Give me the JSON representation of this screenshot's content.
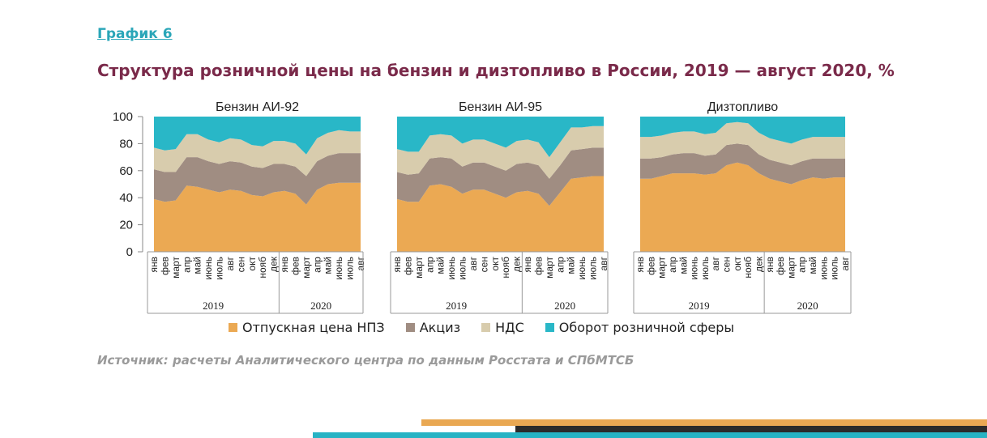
{
  "header": {
    "label": "График 6",
    "title": "Структура розничной цены на бензин и дизтопливо в России, 2019 — август 2020, %"
  },
  "source": "Источник: расчеты Аналитического центра по данным Росстата и СПбМТСБ",
  "colors": {
    "refinery": "#eba953",
    "excise": "#a08d82",
    "vat": "#d8ccad",
    "retail": "#29b7c7"
  },
  "chart_data": [
    {
      "type": "area",
      "stacked": true,
      "title": "Бензин АИ-92",
      "categories": [
        "янв",
        "фев",
        "март",
        "апр",
        "май",
        "июнь",
        "июль",
        "авг",
        "сен",
        "окт",
        "нояб",
        "дек",
        "янв",
        "фев",
        "март",
        "апр",
        "май",
        "июнь",
        "июль",
        "авг"
      ],
      "year_groups": [
        "2019",
        "2020"
      ],
      "ylim": [
        0,
        100
      ],
      "yticks": [
        0,
        20,
        40,
        60,
        80,
        100
      ],
      "series": [
        {
          "name": "Отпускная цена НПЗ",
          "values": [
            39,
            37,
            38,
            49,
            48,
            46,
            44,
            46,
            45,
            42,
            41,
            44,
            45,
            43,
            35,
            46,
            50,
            51,
            51,
            51
          ]
        },
        {
          "name": "Акциз",
          "values": [
            22,
            22,
            21,
            21,
            22,
            21,
            21,
            21,
            21,
            21,
            21,
            21,
            20,
            20,
            21,
            21,
            21,
            22,
            22,
            22
          ]
        },
        {
          "name": "НДС",
          "values": [
            16,
            16,
            17,
            17,
            17,
            16,
            16,
            17,
            17,
            16,
            16,
            17,
            17,
            17,
            16,
            17,
            17,
            17,
            16,
            16
          ]
        },
        {
          "name": "Оборот розничной сферы",
          "values": [
            23,
            25,
            24,
            13,
            13,
            17,
            19,
            16,
            17,
            21,
            22,
            18,
            18,
            20,
            28,
            16,
            12,
            10,
            11,
            11
          ]
        }
      ]
    },
    {
      "type": "area",
      "stacked": true,
      "title": "Бензин АИ-95",
      "categories": [
        "янв",
        "фев",
        "март",
        "апр",
        "май",
        "июнь",
        "июль",
        "авг",
        "сен",
        "окт",
        "нояб",
        "дек",
        "янв",
        "фев",
        "март",
        "апр",
        "май",
        "июнь",
        "июль",
        "авг"
      ],
      "year_groups": [
        "2019",
        "2020"
      ],
      "ylim": [
        0,
        100
      ],
      "yticks": [
        0,
        20,
        40,
        60,
        80,
        100
      ],
      "series": [
        {
          "name": "Отпускная цена НПЗ",
          "values": [
            39,
            37,
            37,
            49,
            50,
            48,
            43,
            46,
            46,
            43,
            40,
            44,
            45,
            43,
            34,
            44,
            54,
            55,
            56,
            56
          ]
        },
        {
          "name": "Акциз",
          "values": [
            20,
            20,
            21,
            20,
            20,
            21,
            20,
            20,
            20,
            20,
            20,
            21,
            21,
            21,
            20,
            20,
            21,
            21,
            21,
            21
          ]
        },
        {
          "name": "НДС",
          "values": [
            17,
            17,
            16,
            17,
            17,
            17,
            17,
            17,
            17,
            17,
            17,
            17,
            17,
            17,
            16,
            17,
            17,
            16,
            16,
            16
          ]
        },
        {
          "name": "Оборот розничной сферы",
          "values": [
            24,
            26,
            26,
            14,
            13,
            14,
            20,
            17,
            17,
            20,
            23,
            18,
            17,
            19,
            30,
            19,
            8,
            8,
            7,
            7
          ]
        }
      ]
    },
    {
      "type": "area",
      "stacked": true,
      "title": "Дизтопливо",
      "categories": [
        "янв",
        "фев",
        "март",
        "апр",
        "май",
        "июнь",
        "июль",
        "авг",
        "сен",
        "окт",
        "нояб",
        "дек",
        "янв",
        "фев",
        "март",
        "апр",
        "май",
        "июнь",
        "июль",
        "авг"
      ],
      "year_groups": [
        "2019",
        "2020"
      ],
      "ylim": [
        0,
        100
      ],
      "yticks": [
        0,
        20,
        40,
        60,
        80,
        100
      ],
      "series": [
        {
          "name": "Отпускная цена НПЗ",
          "values": [
            54,
            54,
            56,
            58,
            58,
            58,
            57,
            58,
            64,
            66,
            64,
            58,
            54,
            52,
            50,
            53,
            55,
            54,
            55,
            55
          ]
        },
        {
          "name": "Акциз",
          "values": [
            15,
            15,
            14,
            14,
            15,
            15,
            14,
            14,
            15,
            14,
            15,
            14,
            14,
            14,
            14,
            14,
            14,
            15,
            14,
            14
          ]
        },
        {
          "name": "НДС",
          "values": [
            16,
            16,
            16,
            16,
            16,
            16,
            16,
            16,
            16,
            16,
            16,
            16,
            16,
            16,
            16,
            16,
            16,
            16,
            16,
            16
          ]
        },
        {
          "name": "Оборот розничной сферы",
          "values": [
            15,
            15,
            14,
            12,
            11,
            11,
            13,
            12,
            5,
            4,
            5,
            12,
            16,
            18,
            20,
            17,
            15,
            15,
            15,
            15
          ]
        }
      ]
    }
  ],
  "legend": [
    {
      "label": "Отпускная цена НПЗ",
      "color": "#eba953"
    },
    {
      "label": "Акциз",
      "color": "#a08d82"
    },
    {
      "label": "НДС",
      "color": "#d8ccad"
    },
    {
      "label": "Оборот розничной сферы",
      "color": "#29b7c7"
    }
  ]
}
